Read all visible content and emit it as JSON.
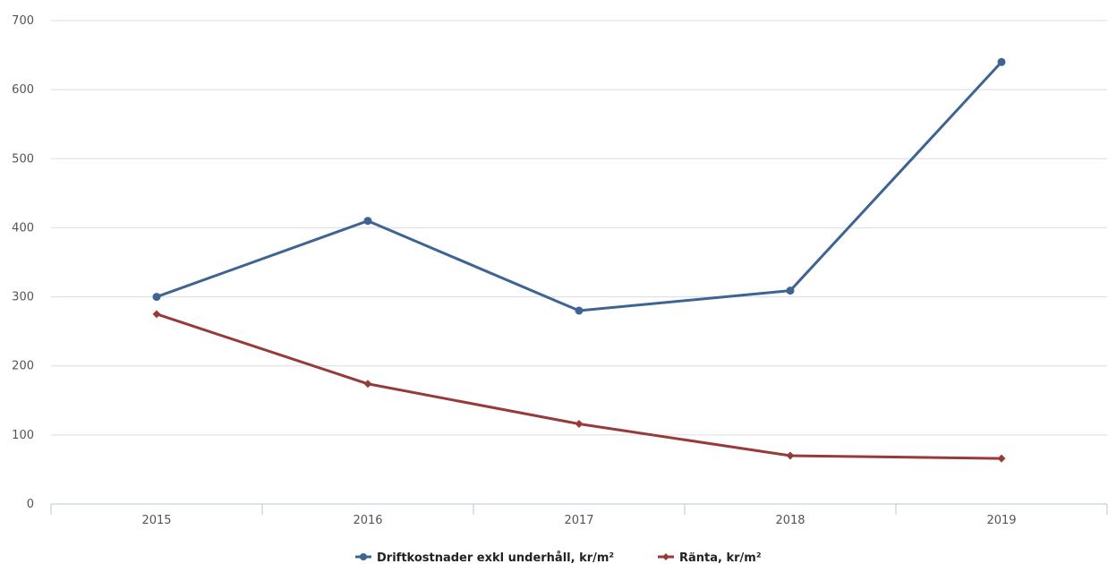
{
  "chart_data": {
    "type": "line",
    "categories": [
      "2015",
      "2016",
      "2017",
      "2018",
      "2019"
    ],
    "ylim": [
      0,
      700
    ],
    "yticks": [
      0,
      100,
      200,
      300,
      400,
      500,
      600,
      700
    ],
    "grid": true,
    "legend_position": "bottom-center",
    "series": [
      {
        "name": "Driftkostnader exkl underhåll, kr/m²",
        "color": "#3e6494",
        "marker": "circle",
        "values": [
          300,
          410,
          280,
          309,
          640
        ]
      },
      {
        "name": "Ränta, kr/m²",
        "color": "#963b37",
        "marker": "diamond",
        "values": [
          275,
          174,
          116,
          70,
          66
        ]
      }
    ]
  }
}
